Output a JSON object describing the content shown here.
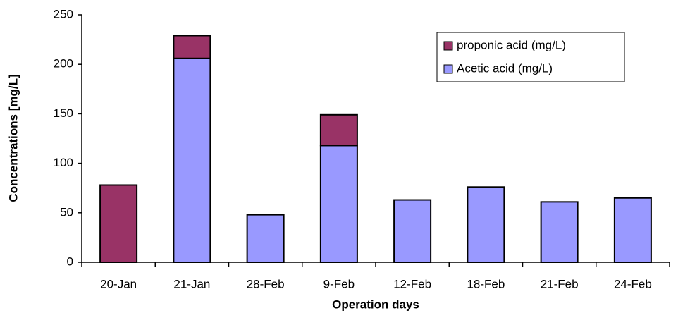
{
  "chart_data": {
    "type": "stacked_bar",
    "x_label": "Operation days",
    "y_label": "Concentrations [mg/L]",
    "categories": [
      "20-Jan",
      "21-Jan",
      "28-Feb",
      "9-Feb",
      "12-Feb",
      "18-Feb",
      "21-Feb",
      "24-Feb"
    ],
    "series": [
      {
        "name": "Acetic acid (mg/L)",
        "color": "#9999ff",
        "values": [
          0,
          206,
          48,
          118,
          63,
          76,
          61,
          65
        ]
      },
      {
        "name": "proponic acid (mg/L)",
        "color": "#993366",
        "values": [
          78,
          23,
          0,
          31,
          0,
          0,
          0,
          0
        ]
      }
    ],
    "ylim": [
      0,
      250
    ],
    "yticks": [
      0,
      50,
      100,
      150,
      200,
      250
    ],
    "grid": false,
    "legend": "top-right"
  }
}
